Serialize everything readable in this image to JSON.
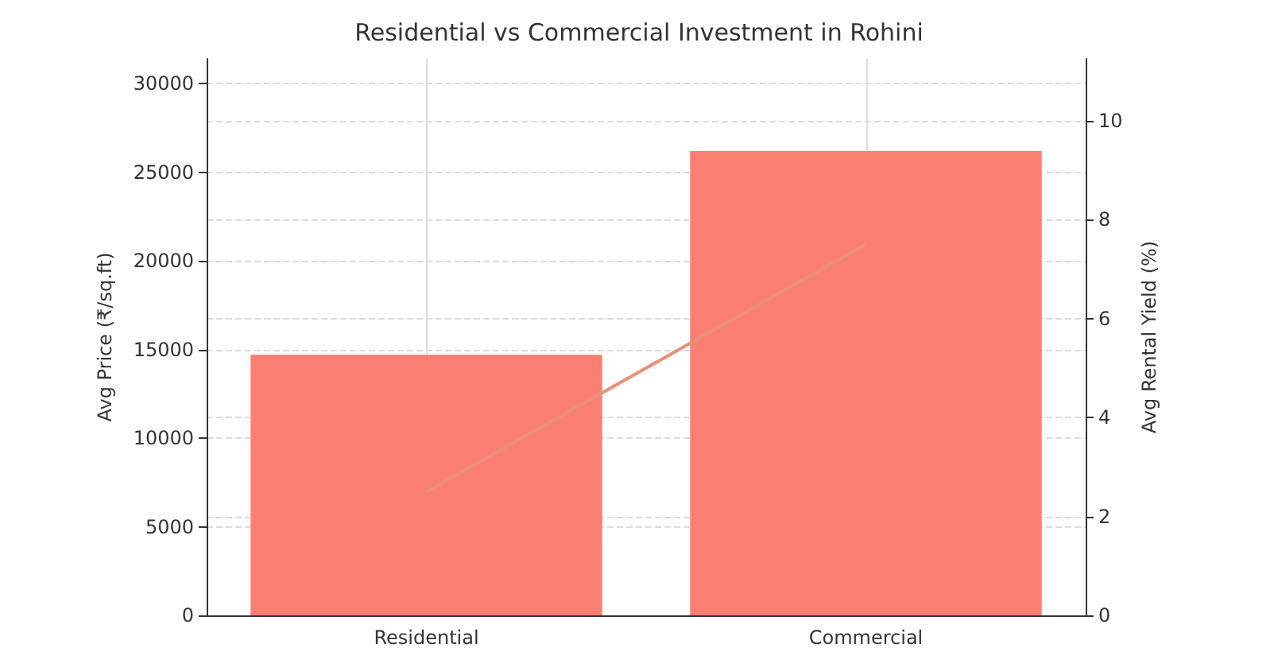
{
  "chart_data": {
    "type": "bar",
    "title": "Residential vs Commercial Investment in Rohini",
    "categories": [
      "Residential",
      "Commercial"
    ],
    "series": [
      {
        "color": "#fa7f72",
        "values": [
          14700,
          26200
        ]
      },
      {
        "type": "line",
        "axis": "y2",
        "color": "#e8907a",
        "values": [
          2.5,
          7.5
        ]
      }
    ],
    "ylabel": "Avg Price (₹/sq.ft)",
    "y2label": "Avg Rental Yield (%)",
    "ylim": [
      0,
      31400
    ],
    "yticks": [
      0,
      5000,
      10000,
      15000,
      20000,
      25000,
      30000
    ],
    "y2lim": [
      0,
      11.25
    ],
    "y2ticks": [
      0,
      2,
      4,
      6,
      8,
      10
    ],
    "grid": true
  }
}
